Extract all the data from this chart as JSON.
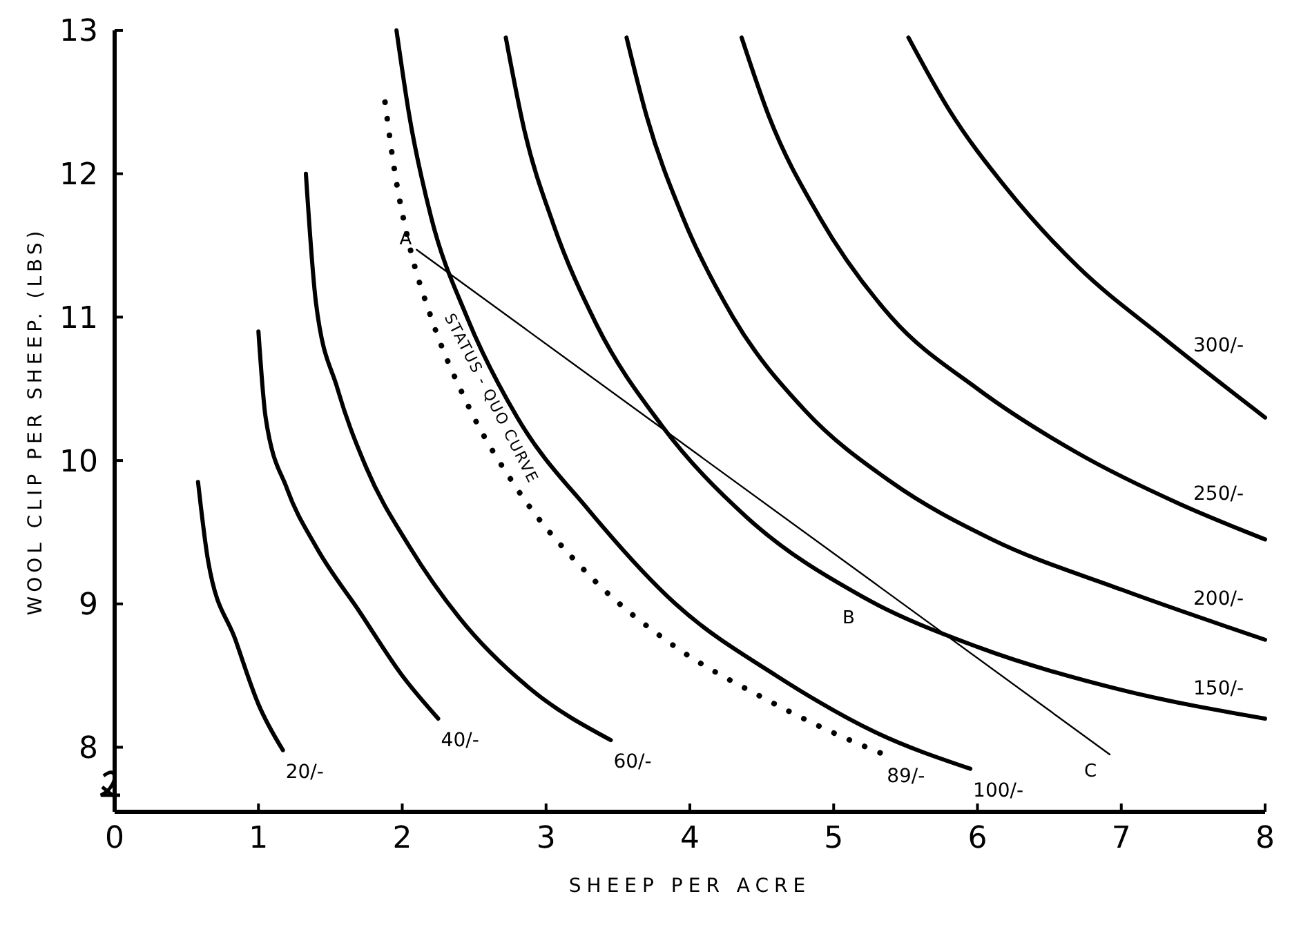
{
  "chart_data": {
    "type": "line",
    "xlabel": "SHEEP PER ACRE",
    "ylabel": "WOOL CLIP PER SHEEP. (LBS)",
    "xlim": [
      0,
      8
    ],
    "ylim": [
      7.55,
      13
    ],
    "xticks": [
      0,
      1,
      2,
      3,
      4,
      5,
      6,
      7,
      8
    ],
    "yticks": [
      8,
      9,
      10,
      11,
      12,
      13
    ],
    "grid": false,
    "legend": false,
    "line_style": "solid",
    "series": [
      {
        "name": "20/-",
        "color": "#000000",
        "x": [
          0.58,
          0.65,
          0.84,
          1.0,
          1.17
        ],
        "values": [
          9.85,
          9.3,
          8.75,
          8.3,
          7.98
        ]
      },
      {
        "name": "40/-",
        "color": "#000000",
        "x": [
          1.0,
          1.05,
          1.2,
          1.4,
          1.7,
          2.0,
          2.25
        ],
        "values": [
          10.9,
          10.3,
          9.8,
          9.4,
          8.95,
          8.5,
          8.2
        ]
      },
      {
        "name": "60/-",
        "color": "#000000",
        "x": [
          1.33,
          1.4,
          1.55,
          1.75,
          2.05,
          2.4,
          2.9,
          3.45
        ],
        "values": [
          12.0,
          11.1,
          10.5,
          9.95,
          9.4,
          8.9,
          8.4,
          8.05
        ]
      },
      {
        "name": "89/-",
        "color": "#000000",
        "line_style": "dotted",
        "x": [
          1.88,
          1.95,
          2.05,
          2.2,
          2.45,
          2.8,
          3.3,
          3.9,
          4.5,
          5.0,
          5.35
        ],
        "values": [
          12.5,
          12.0,
          11.5,
          11.0,
          10.4,
          9.8,
          9.2,
          8.7,
          8.35,
          8.1,
          7.95
        ]
      },
      {
        "name": "100/-",
        "color": "#000000",
        "x": [
          1.96,
          2.05,
          2.2,
          2.45,
          2.8,
          3.3,
          3.9,
          4.6,
          5.3,
          5.95
        ],
        "values": [
          13.0,
          12.4,
          11.7,
          11.0,
          10.3,
          9.65,
          9.0,
          8.5,
          8.1,
          7.85
        ]
      },
      {
        "name": "150/-",
        "color": "#000000",
        "x": [
          2.72,
          2.85,
          3.05,
          3.35,
          3.8,
          4.4,
          5.2,
          6.0,
          7.0,
          8.0
        ],
        "values": [
          12.95,
          12.3,
          11.65,
          10.95,
          10.25,
          9.6,
          9.05,
          8.7,
          8.4,
          8.2
        ]
      },
      {
        "name": "200/-",
        "color": "#000000",
        "x": [
          3.56,
          3.7,
          3.95,
          4.3,
          4.8,
          5.4,
          6.1,
          7.0,
          8.0
        ],
        "values": [
          12.95,
          12.4,
          11.7,
          11.0,
          10.35,
          9.85,
          9.45,
          9.1,
          8.75
        ]
      },
      {
        "name": "250/-",
        "color": "#000000",
        "x": [
          4.36,
          4.55,
          4.9,
          5.4,
          6.0,
          6.7,
          7.4,
          8.0
        ],
        "values": [
          12.95,
          12.4,
          11.7,
          11.0,
          10.5,
          10.05,
          9.7,
          9.45
        ]
      },
      {
        "name": "300/-",
        "color": "#000000",
        "x": [
          5.52,
          5.8,
          6.2,
          6.7,
          7.3,
          8.0
        ],
        "values": [
          12.95,
          12.45,
          11.9,
          11.35,
          10.85,
          10.3
        ]
      },
      {
        "color": "#000000",
        "x": [
          2.1,
          6.92
        ],
        "values": [
          11.47,
          7.95
        ]
      }
    ],
    "annotations": [
      {
        "text": "A",
        "x": 2.1,
        "y": 11.47
      },
      {
        "text": "B",
        "x": 5.2,
        "y": 9.21
      },
      {
        "text": "C",
        "x": 6.92,
        "y": 7.95
      },
      {
        "text": "STATUS - QUO CURVE",
        "x": 2.2,
        "y": 11.0
      }
    ]
  }
}
